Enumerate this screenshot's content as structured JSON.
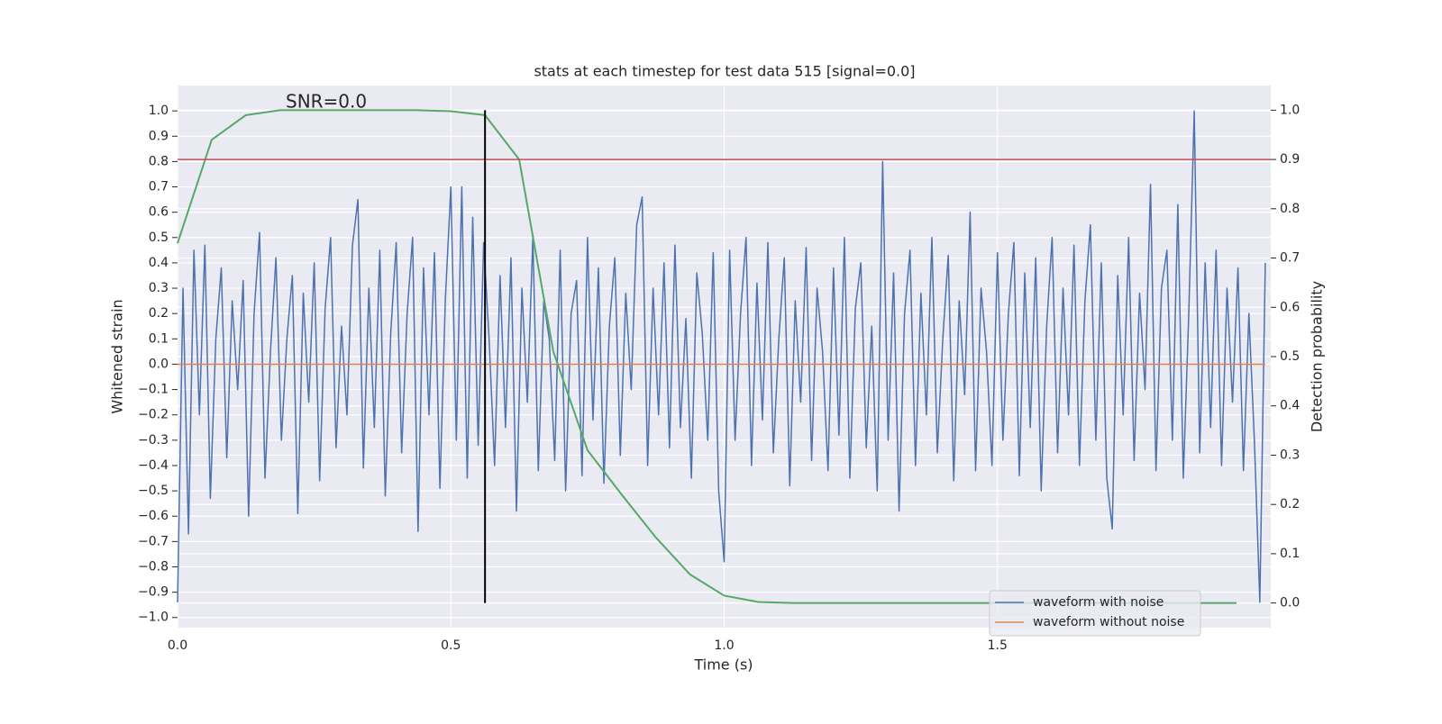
{
  "chart_data": {
    "type": "line",
    "title": "stats at each timestep for test data 515 [signal=0.0]",
    "annotation": "SNR=0.0",
    "xlabel": "Time (s)",
    "ylabel": "Whitened strain",
    "y2label": "Detection probability",
    "xlim": [
      0,
      2
    ],
    "ylim": [
      -1.04,
      1.1
    ],
    "y2lim": [
      -0.05,
      1.05
    ],
    "xticks": [
      {
        "value": 0,
        "label": "0.0"
      },
      {
        "value": 0.5,
        "label": "0.5"
      },
      {
        "value": 1,
        "label": "1.0"
      },
      {
        "value": 1.5,
        "label": "1.5"
      }
    ],
    "yticks": [
      {
        "value": -1,
        "label": "−1.0"
      },
      {
        "value": -0.9,
        "label": "−0.9"
      },
      {
        "value": -0.8,
        "label": "−0.8"
      },
      {
        "value": -0.7,
        "label": "−0.7"
      },
      {
        "value": -0.6,
        "label": "−0.6"
      },
      {
        "value": -0.5,
        "label": "−0.5"
      },
      {
        "value": -0.4,
        "label": "−0.4"
      },
      {
        "value": -0.3,
        "label": "−0.3"
      },
      {
        "value": -0.2,
        "label": "−0.2"
      },
      {
        "value": -0.1,
        "label": "−0.1"
      },
      {
        "value": 0,
        "label": "0.0"
      },
      {
        "value": 0.1,
        "label": "0.1"
      },
      {
        "value": 0.2,
        "label": "0.2"
      },
      {
        "value": 0.3,
        "label": "0.3"
      },
      {
        "value": 0.4,
        "label": "0.4"
      },
      {
        "value": 0.5,
        "label": "0.5"
      },
      {
        "value": 0.6,
        "label": "0.6"
      },
      {
        "value": 0.7,
        "label": "0.7"
      },
      {
        "value": 0.8,
        "label": "0.8"
      },
      {
        "value": 0.9,
        "label": "0.9"
      },
      {
        "value": 1,
        "label": "1.0"
      }
    ],
    "y2ticks": [
      {
        "value": 0,
        "label": "0.0"
      },
      {
        "value": 0.1,
        "label": "0.1"
      },
      {
        "value": 0.2,
        "label": "0.2"
      },
      {
        "value": 0.3,
        "label": "0.3"
      },
      {
        "value": 0.4,
        "label": "0.4"
      },
      {
        "value": 0.5,
        "label": "0.5"
      },
      {
        "value": 0.6,
        "label": "0.6"
      },
      {
        "value": 0.7,
        "label": "0.7"
      },
      {
        "value": 0.8,
        "label": "0.8"
      },
      {
        "value": 0.9,
        "label": "0.9"
      },
      {
        "value": 1,
        "label": "1.0"
      }
    ],
    "grid": true,
    "legend": "lower right",
    "series": [
      {
        "name": "waveform with noise",
        "color": "#4c72b0",
        "x": [
          0,
          0.01,
          0.02,
          0.03,
          0.04,
          0.05,
          0.06,
          0.07,
          0.08,
          0.09,
          0.1,
          0.11,
          0.12,
          0.13,
          0.14,
          0.15,
          0.16,
          0.17,
          0.18,
          0.19,
          0.2,
          0.21,
          0.22,
          0.23,
          0.24,
          0.25,
          0.26,
          0.27,
          0.28,
          0.29,
          0.3,
          0.31,
          0.32,
          0.33,
          0.34,
          0.35,
          0.36,
          0.37,
          0.38,
          0.39,
          0.4,
          0.41,
          0.42,
          0.43,
          0.44,
          0.45,
          0.46,
          0.47,
          0.48,
          0.49,
          0.5,
          0.51,
          0.52,
          0.53,
          0.54,
          0.55,
          0.56,
          0.57,
          0.58,
          0.59,
          0.6,
          0.61,
          0.62,
          0.63,
          0.64,
          0.65,
          0.66,
          0.67,
          0.68,
          0.69,
          0.7,
          0.71,
          0.72,
          0.73,
          0.74,
          0.75,
          0.76,
          0.77,
          0.78,
          0.79,
          0.8,
          0.81,
          0.82,
          0.83,
          0.84,
          0.85,
          0.86,
          0.87,
          0.88,
          0.89,
          0.9,
          0.91,
          0.92,
          0.93,
          0.94,
          0.95,
          0.96,
          0.97,
          0.98,
          0.99,
          1,
          1.01,
          1.02,
          1.03,
          1.04,
          1.05,
          1.06,
          1.07,
          1.08,
          1.09,
          1.1,
          1.11,
          1.12,
          1.13,
          1.14,
          1.15,
          1.16,
          1.17,
          1.18,
          1.19,
          1.2,
          1.21,
          1.22,
          1.23,
          1.24,
          1.25,
          1.26,
          1.27,
          1.28,
          1.29,
          1.3,
          1.31,
          1.32,
          1.33,
          1.34,
          1.35,
          1.36,
          1.37,
          1.38,
          1.39,
          1.4,
          1.41,
          1.42,
          1.43,
          1.44,
          1.45,
          1.46,
          1.47,
          1.48,
          1.49,
          1.5,
          1.51,
          1.52,
          1.53,
          1.54,
          1.55,
          1.56,
          1.57,
          1.58,
          1.59,
          1.6,
          1.61,
          1.62,
          1.63,
          1.64,
          1.65,
          1.66,
          1.67,
          1.68,
          1.69,
          1.7,
          1.71,
          1.72,
          1.73,
          1.74,
          1.75,
          1.76,
          1.77,
          1.78,
          1.79,
          1.8,
          1.81,
          1.82,
          1.83,
          1.84,
          1.85,
          1.86,
          1.87,
          1.88,
          1.89,
          1.9,
          1.91,
          1.92,
          1.93,
          1.94,
          1.95,
          1.96,
          1.97,
          1.98,
          1.99
        ],
        "values": [
          -0.94,
          0.3,
          -0.67,
          0.45,
          -0.2,
          0.47,
          -0.53,
          0.1,
          0.38,
          -0.37,
          0.25,
          -0.1,
          0.33,
          -0.6,
          0.2,
          0.52,
          -0.45,
          0.05,
          0.42,
          -0.3,
          0.1,
          0.35,
          -0.59,
          0.28,
          -0.15,
          0.4,
          -0.46,
          0.22,
          0.5,
          -0.33,
          0.15,
          -0.2,
          0.47,
          0.65,
          -0.41,
          0.3,
          -0.25,
          0.45,
          -0.52,
          0.12,
          0.48,
          -0.35,
          0.2,
          0.5,
          -0.66,
          0.38,
          -0.2,
          0.44,
          -0.49,
          0.26,
          0.7,
          -0.3,
          0.7,
          -0.45,
          0.58,
          -0.32,
          0.48,
          0.1,
          -0.4,
          0.35,
          -0.25,
          0.42,
          -0.58,
          0.3,
          -0.15,
          0.5,
          -0.42,
          0.25,
          0.1,
          -0.38,
          0.45,
          -0.5,
          0.2,
          0.33,
          -0.44,
          0.5,
          -0.22,
          0.38,
          -0.47,
          0.15,
          0.42,
          -0.36,
          0.28,
          -0.1,
          0.55,
          0.66,
          -0.4,
          0.3,
          -0.2,
          0.4,
          -0.33,
          0.47,
          -0.25,
          0.18,
          -0.45,
          0.36,
          0.12,
          -0.3,
          0.44,
          -0.5,
          -0.78,
          0.45,
          -0.3,
          0.2,
          0.5,
          -0.4,
          0.32,
          -0.22,
          0.48,
          -0.35,
          0.1,
          0.42,
          -0.48,
          0.25,
          -0.15,
          0.46,
          -0.38,
          0.3,
          0.05,
          -0.42,
          0.38,
          -0.28,
          0.5,
          -0.45,
          0.22,
          0.4,
          -0.33,
          0.15,
          -0.5,
          0.8,
          -0.3,
          0.36,
          -0.58,
          0.2,
          0.45,
          -0.4,
          0.28,
          -0.2,
          0.5,
          -0.35,
          0.1,
          0.43,
          -0.46,
          0.25,
          -0.12,
          0.6,
          -0.42,
          0.3,
          0.05,
          -0.4,
          0.44,
          -0.3,
          0.2,
          0.48,
          -0.44,
          0.36,
          -0.25,
          0.42,
          -0.5,
          0.15,
          0.5,
          -0.35,
          0.3,
          -0.2,
          0.47,
          -0.4,
          0.25,
          0.55,
          -0.3,
          0.4,
          -0.45,
          -0.65,
          0.35,
          -0.2,
          0.5,
          -0.38,
          0.28,
          -0.1,
          0.71,
          -0.42,
          0.3,
          0.45,
          -0.3,
          0.63,
          -0.45,
          0.2,
          1.0,
          -0.35,
          0.4,
          -0.25,
          0.45,
          -0.4,
          0.3,
          -0.15,
          0.38,
          -0.42,
          0.2,
          -0.3,
          -0.94,
          0.4
        ]
      },
      {
        "name": "waveform without noise",
        "color": "#dd8452",
        "x": [
          0,
          1.99
        ],
        "values": [
          0,
          0
        ]
      }
    ],
    "probability": {
      "color": "#55a868",
      "axis": "y2",
      "x": [
        0,
        0.0625,
        0.125,
        0.1875,
        0.25,
        0.3125,
        0.375,
        0.4375,
        0.5,
        0.5625,
        0.625,
        0.6875,
        0.75,
        0.8125,
        0.875,
        0.9375,
        1,
        1.0625,
        1.125,
        1.1875,
        1.25,
        1.3125,
        1.375,
        1.4375,
        1.5,
        1.5625,
        1.625,
        1.6875,
        1.75,
        1.8125,
        1.875,
        1.9375
      ],
      "values": [
        0.73,
        0.94,
        0.99,
        1.0,
        1.0,
        1.0,
        1.0,
        1.0,
        0.998,
        0.99,
        0.9,
        0.51,
        0.31,
        0.22,
        0.133,
        0.058,
        0.015,
        0.002,
        0,
        0,
        0,
        0,
        0,
        0,
        0,
        0,
        0,
        0,
        0,
        0,
        0,
        0
      ]
    },
    "threshold": {
      "value": 0.9,
      "axis": "y2",
      "color": "#c44e52"
    },
    "marker": {
      "x": 0.5625,
      "y2range": [
        0,
        1
      ],
      "color": "#000000"
    }
  }
}
